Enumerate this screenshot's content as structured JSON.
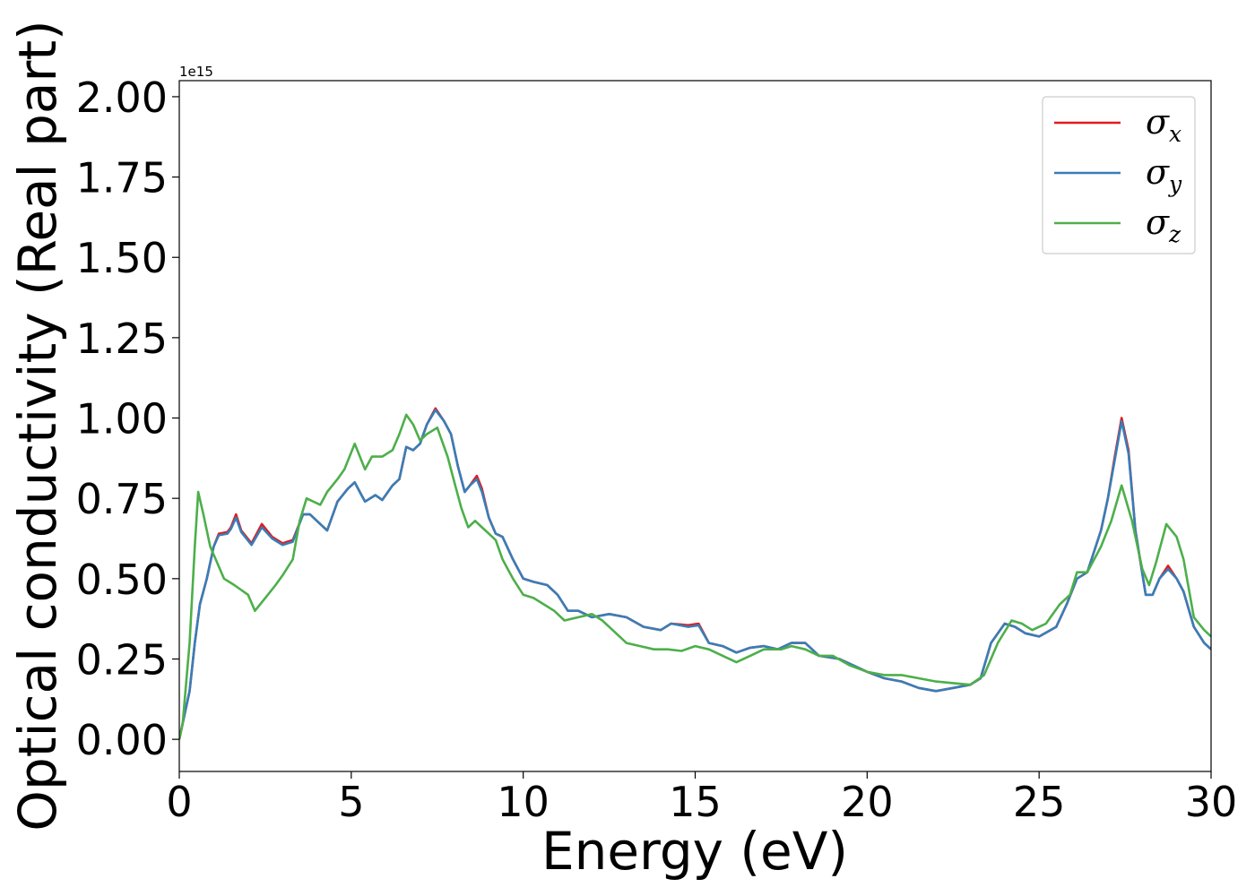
{
  "chart_data": {
    "type": "line",
    "title": "",
    "xlabel": "Energy (eV)",
    "ylabel": "Optical conductivity (Real part)",
    "y_offset_text": "1e15",
    "y_scale_factor": 1000000000000000.0,
    "xlim": [
      0,
      30
    ],
    "ylim": [
      -0.1,
      2.05
    ],
    "xticks": [
      0,
      5,
      10,
      15,
      20,
      25,
      30
    ],
    "xtick_labels": [
      "0",
      "5",
      "10",
      "15",
      "20",
      "25",
      "30"
    ],
    "yticks": [
      0.0,
      0.25,
      0.5,
      0.75,
      1.0,
      1.25,
      1.5,
      1.75,
      2.0
    ],
    "ytick_labels": [
      "0.00",
      "0.25",
      "0.50",
      "0.75",
      "1.00",
      "1.25",
      "1.50",
      "1.75",
      "2.00"
    ],
    "grid": false,
    "legend_position": "top-right",
    "series": [
      {
        "name": "σx",
        "symbol": "σ",
        "subscript": "x",
        "color": "#e41a1c",
        "points": [
          [
            0,
            0
          ],
          [
            0.1,
            0.05
          ],
          [
            0.3,
            0.15
          ],
          [
            0.45,
            0.3
          ],
          [
            0.6,
            0.42
          ],
          [
            0.8,
            0.5
          ],
          [
            1.0,
            0.6
          ],
          [
            1.15,
            0.64
          ],
          [
            1.4,
            0.645
          ],
          [
            1.5,
            0.66
          ],
          [
            1.65,
            0.7
          ],
          [
            1.8,
            0.65
          ],
          [
            2.1,
            0.61
          ],
          [
            2.4,
            0.67
          ],
          [
            2.7,
            0.63
          ],
          [
            3.0,
            0.61
          ],
          [
            3.3,
            0.62
          ],
          [
            3.6,
            0.7
          ],
          [
            3.8,
            0.7
          ],
          [
            4.1,
            0.67
          ],
          [
            4.3,
            0.65
          ],
          [
            4.6,
            0.74
          ],
          [
            4.9,
            0.78
          ],
          [
            5.1,
            0.8
          ],
          [
            5.3,
            0.76
          ],
          [
            5.4,
            0.74
          ],
          [
            5.7,
            0.76
          ],
          [
            5.9,
            0.745
          ],
          [
            6.2,
            0.79
          ],
          [
            6.4,
            0.81
          ],
          [
            6.6,
            0.91
          ],
          [
            6.8,
            0.9
          ],
          [
            7.0,
            0.92
          ],
          [
            7.2,
            0.98
          ],
          [
            7.45,
            1.03
          ],
          [
            7.7,
            0.99
          ],
          [
            7.9,
            0.95
          ],
          [
            8.1,
            0.85
          ],
          [
            8.3,
            0.77
          ],
          [
            8.45,
            0.79
          ],
          [
            8.65,
            0.82
          ],
          [
            8.8,
            0.78
          ],
          [
            9.0,
            0.69
          ],
          [
            9.2,
            0.64
          ],
          [
            9.4,
            0.63
          ],
          [
            9.7,
            0.56
          ],
          [
            10.0,
            0.5
          ],
          [
            10.3,
            0.49
          ],
          [
            10.7,
            0.48
          ],
          [
            11.0,
            0.45
          ],
          [
            11.3,
            0.4
          ],
          [
            11.6,
            0.4
          ],
          [
            12.0,
            0.38
          ],
          [
            12.5,
            0.39
          ],
          [
            13.0,
            0.38
          ],
          [
            13.5,
            0.35
          ],
          [
            14.0,
            0.34
          ],
          [
            14.3,
            0.36
          ],
          [
            14.8,
            0.355
          ],
          [
            15.1,
            0.36
          ],
          [
            15.4,
            0.3
          ],
          [
            15.8,
            0.29
          ],
          [
            16.2,
            0.27
          ],
          [
            16.6,
            0.285
          ],
          [
            17.0,
            0.29
          ],
          [
            17.4,
            0.28
          ],
          [
            17.8,
            0.3
          ],
          [
            18.2,
            0.3
          ],
          [
            18.6,
            0.26
          ],
          [
            19.2,
            0.25
          ],
          [
            19.6,
            0.23
          ],
          [
            20.0,
            0.21
          ],
          [
            20.5,
            0.19
          ],
          [
            21.0,
            0.18
          ],
          [
            21.5,
            0.16
          ],
          [
            22.0,
            0.15
          ],
          [
            22.5,
            0.16
          ],
          [
            23.0,
            0.17
          ],
          [
            23.3,
            0.19
          ],
          [
            23.6,
            0.3
          ],
          [
            24.0,
            0.36
          ],
          [
            24.3,
            0.35
          ],
          [
            24.6,
            0.33
          ],
          [
            25.0,
            0.32
          ],
          [
            25.5,
            0.35
          ],
          [
            25.8,
            0.42
          ],
          [
            26.1,
            0.5
          ],
          [
            26.4,
            0.52
          ],
          [
            26.8,
            0.65
          ],
          [
            27.0,
            0.75
          ],
          [
            27.2,
            0.88
          ],
          [
            27.4,
            1.0
          ],
          [
            27.6,
            0.9
          ],
          [
            27.8,
            0.65
          ],
          [
            28.1,
            0.45
          ],
          [
            28.3,
            0.45
          ],
          [
            28.5,
            0.5
          ],
          [
            28.75,
            0.54
          ],
          [
            29.0,
            0.5
          ],
          [
            29.2,
            0.46
          ],
          [
            29.5,
            0.35
          ],
          [
            29.8,
            0.3
          ],
          [
            30.0,
            0.28
          ]
        ]
      },
      {
        "name": "σy",
        "symbol": "σ",
        "subscript": "y",
        "color": "#377eb8",
        "points": [
          [
            0,
            0
          ],
          [
            0.1,
            0.05
          ],
          [
            0.3,
            0.15
          ],
          [
            0.45,
            0.3
          ],
          [
            0.6,
            0.42
          ],
          [
            0.8,
            0.5
          ],
          [
            1.0,
            0.6
          ],
          [
            1.15,
            0.635
          ],
          [
            1.4,
            0.64
          ],
          [
            1.5,
            0.655
          ],
          [
            1.65,
            0.69
          ],
          [
            1.8,
            0.645
          ],
          [
            2.1,
            0.605
          ],
          [
            2.4,
            0.66
          ],
          [
            2.7,
            0.625
          ],
          [
            3.0,
            0.605
          ],
          [
            3.3,
            0.615
          ],
          [
            3.6,
            0.7
          ],
          [
            3.8,
            0.7
          ],
          [
            4.1,
            0.67
          ],
          [
            4.3,
            0.65
          ],
          [
            4.6,
            0.74
          ],
          [
            4.9,
            0.78
          ],
          [
            5.1,
            0.8
          ],
          [
            5.3,
            0.76
          ],
          [
            5.4,
            0.74
          ],
          [
            5.7,
            0.76
          ],
          [
            5.9,
            0.745
          ],
          [
            6.2,
            0.79
          ],
          [
            6.4,
            0.81
          ],
          [
            6.6,
            0.91
          ],
          [
            6.8,
            0.9
          ],
          [
            7.0,
            0.92
          ],
          [
            7.2,
            0.98
          ],
          [
            7.45,
            1.025
          ],
          [
            7.7,
            0.99
          ],
          [
            7.9,
            0.95
          ],
          [
            8.1,
            0.85
          ],
          [
            8.3,
            0.77
          ],
          [
            8.45,
            0.79
          ],
          [
            8.65,
            0.81
          ],
          [
            8.8,
            0.77
          ],
          [
            9.0,
            0.69
          ],
          [
            9.2,
            0.64
          ],
          [
            9.4,
            0.63
          ],
          [
            9.7,
            0.56
          ],
          [
            10.0,
            0.5
          ],
          [
            10.3,
            0.49
          ],
          [
            10.7,
            0.48
          ],
          [
            11.0,
            0.45
          ],
          [
            11.3,
            0.4
          ],
          [
            11.6,
            0.4
          ],
          [
            12.0,
            0.38
          ],
          [
            12.5,
            0.39
          ],
          [
            13.0,
            0.38
          ],
          [
            13.5,
            0.35
          ],
          [
            14.0,
            0.34
          ],
          [
            14.3,
            0.36
          ],
          [
            14.8,
            0.35
          ],
          [
            15.1,
            0.355
          ],
          [
            15.4,
            0.3
          ],
          [
            15.8,
            0.29
          ],
          [
            16.2,
            0.27
          ],
          [
            16.6,
            0.285
          ],
          [
            17.0,
            0.29
          ],
          [
            17.4,
            0.28
          ],
          [
            17.8,
            0.3
          ],
          [
            18.2,
            0.3
          ],
          [
            18.6,
            0.26
          ],
          [
            19.2,
            0.25
          ],
          [
            19.6,
            0.23
          ],
          [
            20.0,
            0.21
          ],
          [
            20.5,
            0.19
          ],
          [
            21.0,
            0.18
          ],
          [
            21.5,
            0.16
          ],
          [
            22.0,
            0.15
          ],
          [
            22.5,
            0.16
          ],
          [
            23.0,
            0.17
          ],
          [
            23.3,
            0.19
          ],
          [
            23.6,
            0.3
          ],
          [
            24.0,
            0.36
          ],
          [
            24.3,
            0.35
          ],
          [
            24.6,
            0.33
          ],
          [
            25.0,
            0.32
          ],
          [
            25.5,
            0.35
          ],
          [
            25.8,
            0.42
          ],
          [
            26.1,
            0.5
          ],
          [
            26.4,
            0.52
          ],
          [
            26.8,
            0.65
          ],
          [
            27.0,
            0.75
          ],
          [
            27.2,
            0.87
          ],
          [
            27.4,
            0.99
          ],
          [
            27.6,
            0.89
          ],
          [
            27.8,
            0.65
          ],
          [
            28.1,
            0.45
          ],
          [
            28.3,
            0.45
          ],
          [
            28.5,
            0.5
          ],
          [
            28.75,
            0.53
          ],
          [
            29.0,
            0.5
          ],
          [
            29.2,
            0.46
          ],
          [
            29.5,
            0.35
          ],
          [
            29.8,
            0.3
          ],
          [
            30.0,
            0.28
          ]
        ]
      },
      {
        "name": "σz",
        "symbol": "σ",
        "subscript": "z",
        "color": "#4daf4a",
        "points": [
          [
            0,
            0
          ],
          [
            0.1,
            0.05
          ],
          [
            0.3,
            0.3
          ],
          [
            0.45,
            0.6
          ],
          [
            0.55,
            0.77
          ],
          [
            0.7,
            0.7
          ],
          [
            0.9,
            0.6
          ],
          [
            1.1,
            0.55
          ],
          [
            1.3,
            0.5
          ],
          [
            1.6,
            0.48
          ],
          [
            2.0,
            0.45
          ],
          [
            2.2,
            0.4
          ],
          [
            2.5,
            0.44
          ],
          [
            2.8,
            0.48
          ],
          [
            3.0,
            0.51
          ],
          [
            3.3,
            0.56
          ],
          [
            3.5,
            0.68
          ],
          [
            3.7,
            0.75
          ],
          [
            3.9,
            0.74
          ],
          [
            4.1,
            0.73
          ],
          [
            4.3,
            0.77
          ],
          [
            4.6,
            0.81
          ],
          [
            4.8,
            0.84
          ],
          [
            5.1,
            0.92
          ],
          [
            5.4,
            0.84
          ],
          [
            5.6,
            0.88
          ],
          [
            5.9,
            0.88
          ],
          [
            6.2,
            0.9
          ],
          [
            6.4,
            0.95
          ],
          [
            6.6,
            1.01
          ],
          [
            6.8,
            0.98
          ],
          [
            7.0,
            0.93
          ],
          [
            7.2,
            0.95
          ],
          [
            7.5,
            0.97
          ],
          [
            7.8,
            0.88
          ],
          [
            8.0,
            0.8
          ],
          [
            8.2,
            0.72
          ],
          [
            8.4,
            0.66
          ],
          [
            8.6,
            0.68
          ],
          [
            8.8,
            0.66
          ],
          [
            9.0,
            0.64
          ],
          [
            9.2,
            0.62
          ],
          [
            9.4,
            0.56
          ],
          [
            9.7,
            0.5
          ],
          [
            10.0,
            0.45
          ],
          [
            10.3,
            0.44
          ],
          [
            10.6,
            0.42
          ],
          [
            10.9,
            0.4
          ],
          [
            11.2,
            0.37
          ],
          [
            11.6,
            0.38
          ],
          [
            12.0,
            0.39
          ],
          [
            12.3,
            0.37
          ],
          [
            12.6,
            0.34
          ],
          [
            13.0,
            0.3
          ],
          [
            13.4,
            0.29
          ],
          [
            13.8,
            0.28
          ],
          [
            14.2,
            0.28
          ],
          [
            14.6,
            0.275
          ],
          [
            15.0,
            0.29
          ],
          [
            15.4,
            0.28
          ],
          [
            15.8,
            0.26
          ],
          [
            16.2,
            0.24
          ],
          [
            16.6,
            0.26
          ],
          [
            17.0,
            0.28
          ],
          [
            17.5,
            0.28
          ],
          [
            17.8,
            0.29
          ],
          [
            18.2,
            0.28
          ],
          [
            18.6,
            0.26
          ],
          [
            19.0,
            0.26
          ],
          [
            19.5,
            0.23
          ],
          [
            20.0,
            0.21
          ],
          [
            20.5,
            0.2
          ],
          [
            21.0,
            0.2
          ],
          [
            21.5,
            0.19
          ],
          [
            22.0,
            0.18
          ],
          [
            22.5,
            0.175
          ],
          [
            23.0,
            0.17
          ],
          [
            23.4,
            0.2
          ],
          [
            23.8,
            0.3
          ],
          [
            24.2,
            0.37
          ],
          [
            24.5,
            0.36
          ],
          [
            24.8,
            0.34
          ],
          [
            25.2,
            0.36
          ],
          [
            25.6,
            0.42
          ],
          [
            25.9,
            0.45
          ],
          [
            26.1,
            0.52
          ],
          [
            26.4,
            0.52
          ],
          [
            26.8,
            0.6
          ],
          [
            27.1,
            0.68
          ],
          [
            27.4,
            0.79
          ],
          [
            27.7,
            0.68
          ],
          [
            28.0,
            0.53
          ],
          [
            28.2,
            0.48
          ],
          [
            28.4,
            0.55
          ],
          [
            28.7,
            0.67
          ],
          [
            29.0,
            0.63
          ],
          [
            29.2,
            0.56
          ],
          [
            29.5,
            0.38
          ],
          [
            29.8,
            0.34
          ],
          [
            30.0,
            0.32
          ]
        ]
      }
    ]
  }
}
